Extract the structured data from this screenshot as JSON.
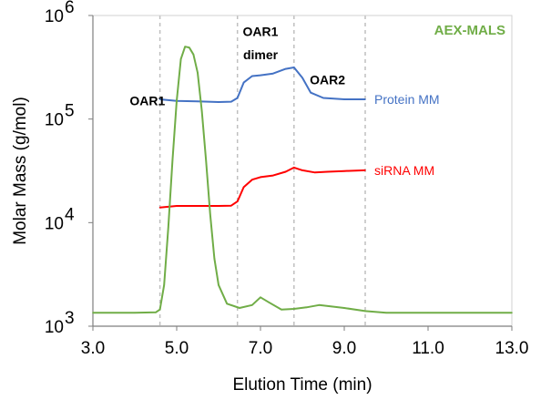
{
  "chart_data": {
    "type": "line",
    "title": "AEX-MALS",
    "title_color": "#70ad47",
    "xlabel": "Elution Time (min)",
    "ylabel": "Molar Mass (g/mol)",
    "x_scale": "linear",
    "y_scale": "log",
    "xlim": [
      3.0,
      13.0
    ],
    "ylim": [
      1000,
      1000000
    ],
    "x_ticks": [
      "3.0",
      "5.0",
      "7.0",
      "9.0",
      "11.0",
      "13.0"
    ],
    "x_tick_values": [
      3,
      5,
      7,
      9,
      11,
      13
    ],
    "y_ticks": [
      {
        "value": 1000,
        "base": "10",
        "exp": "3"
      },
      {
        "value": 10000,
        "base": "10",
        "exp": "4"
      },
      {
        "value": 100000,
        "base": "10",
        "exp": "5"
      },
      {
        "value": 1000000,
        "base": "10",
        "exp": "6"
      }
    ],
    "grid": false,
    "dividers": {
      "x": [
        4.6,
        6.45,
        7.8,
        9.5
      ],
      "style": "dashed",
      "color": "#bfbfbf"
    },
    "series": [
      {
        "name": "Protein MM",
        "color": "#4472c4",
        "x": [
          4.6,
          5.0,
          5.5,
          6.0,
          6.3,
          6.45,
          6.6,
          6.8,
          7.0,
          7.3,
          7.6,
          7.8,
          8.0,
          8.2,
          8.5,
          9.0,
          9.5
        ],
        "y": [
          155000,
          150000,
          148000,
          146000,
          147000,
          160000,
          225000,
          260000,
          265000,
          275000,
          305000,
          315000,
          250000,
          180000,
          160000,
          155000,
          155000
        ]
      },
      {
        "name": "siRNA MM",
        "color": "#ff0000",
        "x": [
          4.6,
          5.0,
          5.5,
          6.0,
          6.3,
          6.45,
          6.6,
          6.8,
          7.0,
          7.3,
          7.6,
          7.8,
          8.0,
          8.3,
          8.6,
          9.0,
          9.5
        ],
        "y": [
          14000,
          14500,
          14500,
          14500,
          14600,
          16000,
          22000,
          26000,
          27500,
          28500,
          31000,
          34000,
          32000,
          30500,
          31000,
          31500,
          32000
        ]
      },
      {
        "name": "",
        "color": "#70ad47",
        "x": [
          3.0,
          4.0,
          4.5,
          4.6,
          4.7,
          4.8,
          4.9,
          5.0,
          5.1,
          5.2,
          5.3,
          5.4,
          5.5,
          5.6,
          5.7,
          5.8,
          5.9,
          6.0,
          6.2,
          6.5,
          6.8,
          7.0,
          7.2,
          7.5,
          7.8,
          8.1,
          8.4,
          8.7,
          9.0,
          9.5,
          10.0,
          11.0,
          13.0
        ],
        "y": [
          1350,
          1350,
          1360,
          1450,
          2500,
          9000,
          40000,
          150000,
          380000,
          500000,
          490000,
          420000,
          280000,
          120000,
          40000,
          12000,
          4500,
          2500,
          1650,
          1500,
          1600,
          1900,
          1700,
          1450,
          1470,
          1520,
          1600,
          1550,
          1500,
          1400,
          1350,
          1350,
          1350
        ]
      }
    ],
    "annotations": [
      {
        "text": "OAR1",
        "x": 4.3,
        "y": 150000
      },
      {
        "text": "OAR1",
        "x": 7.0,
        "y": 700000
      },
      {
        "text": "dimer",
        "x": 7.0,
        "y": 420000
      },
      {
        "text": "OAR2",
        "x": 8.6,
        "y": 240000
      }
    ]
  }
}
